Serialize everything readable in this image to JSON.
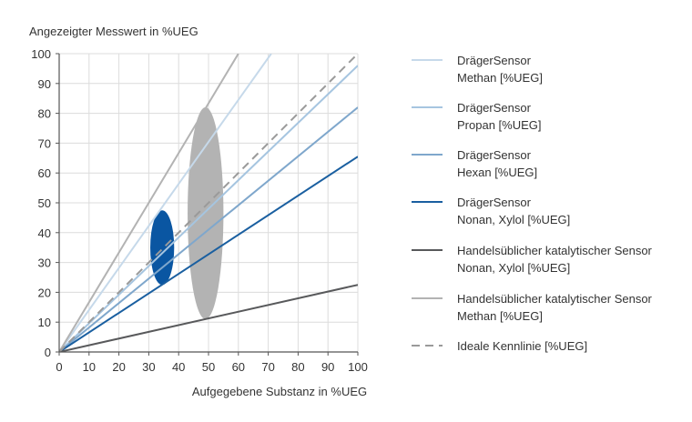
{
  "chart_data": {
    "type": "line",
    "title": "",
    "ylabel": "Angezeigter Messwert in %UEG",
    "xlabel": "Aufgegebene Substanz in %UEG",
    "xlim": [
      0,
      100
    ],
    "ylim": [
      0,
      100
    ],
    "xticks": [
      0,
      10,
      20,
      30,
      40,
      50,
      60,
      70,
      80,
      90,
      100
    ],
    "yticks": [
      0,
      10,
      20,
      30,
      40,
      50,
      60,
      70,
      80,
      90,
      100
    ],
    "grid": true,
    "legend_position": "right",
    "series": [
      {
        "name_lines": [
          "DrägerSensor",
          "Methan [%UEG]"
        ],
        "color": "#c6d9ea",
        "dash": false,
        "x": [
          0,
          71
        ],
        "y": [
          0,
          100
        ]
      },
      {
        "name_lines": [
          "DrägerSensor",
          "Propan [%UEG]"
        ],
        "color": "#a6c5e0",
        "dash": false,
        "x": [
          0,
          100
        ],
        "y": [
          0,
          96
        ]
      },
      {
        "name_lines": [
          "DrägerSensor",
          "Hexan [%UEG]"
        ],
        "color": "#7fa7cc",
        "dash": false,
        "x": [
          0,
          100
        ],
        "y": [
          0,
          82
        ]
      },
      {
        "name_lines": [
          "DrägerSensor",
          "Nonan, Xylol [%UEG]"
        ],
        "color": "#1a5fa0",
        "dash": false,
        "x": [
          0,
          100
        ],
        "y": [
          0,
          65.5
        ]
      },
      {
        "name_lines": [
          "Handelsüblicher katalytischer Sensor",
          "Nonan, Xylol [%UEG]"
        ],
        "color": "#58595b",
        "dash": false,
        "x": [
          0,
          100
        ],
        "y": [
          0,
          22.5
        ]
      },
      {
        "name_lines": [
          "Handelsüblicher katalytischer Sensor",
          "Methan [%UEG]"
        ],
        "color": "#b3b3b3",
        "dash": false,
        "x": [
          0,
          60
        ],
        "y": [
          0,
          100
        ]
      },
      {
        "name_lines": [
          "Ideale Kennlinie [%UEG]"
        ],
        "color": "#9a9a9a",
        "dash": true,
        "x": [
          0,
          100
        ],
        "y": [
          0,
          100
        ]
      }
    ],
    "ellipses": [
      {
        "label": "spread-draeger",
        "cx": 34.5,
        "cy": 35,
        "rx": 4,
        "ry": 12.5,
        "color": "#0a56a2"
      },
      {
        "label": "spread-catalytic",
        "cx": 49,
        "cy": 46.5,
        "rx": 6,
        "ry": 35.5,
        "color": "#b3b3b3"
      }
    ]
  }
}
